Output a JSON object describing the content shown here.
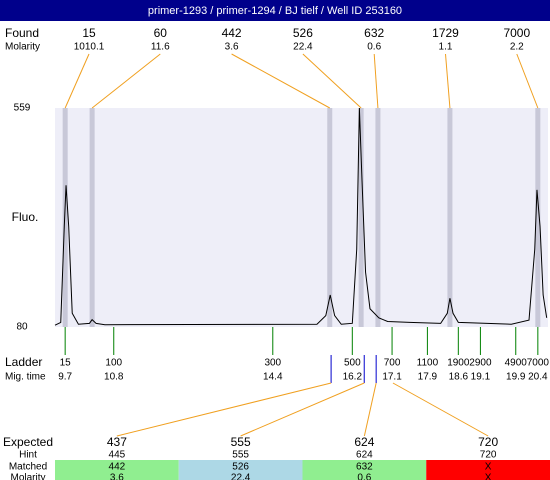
{
  "header": {
    "title": "primer-1293 / primer-1294 / BJ tielf / Well ID 253160"
  },
  "chart_data": {
    "type": "line",
    "ylabel": "Fluo.",
    "ylim": [
      80,
      559
    ],
    "yticks": [
      80,
      559
    ],
    "xlim": [
      9.47,
      20.63
    ],
    "x": [
      9.47,
      9.6,
      9.68,
      9.72,
      9.78,
      9.86,
      10.0,
      10.25,
      10.31,
      10.4,
      10.6,
      15.4,
      15.6,
      15.7,
      15.8,
      15.95,
      16.2,
      16.3,
      16.36,
      16.42,
      16.5,
      16.6,
      16.8,
      17.0,
      17.5,
      18.2,
      18.35,
      18.41,
      18.48,
      18.6,
      19.8,
      20.2,
      20.33,
      20.38,
      20.45,
      20.52,
      20.6
    ],
    "values": [
      84,
      90,
      300,
      390,
      300,
      110,
      86,
      88,
      96,
      88,
      85,
      86,
      105,
      150,
      105,
      86,
      88,
      250,
      559,
      400,
      200,
      120,
      100,
      92,
      90,
      88,
      110,
      143,
      110,
      90,
      86,
      95,
      250,
      380,
      300,
      150,
      100
    ],
    "color": "#000000",
    "found": {
      "label": "Found",
      "molarity_label": "Molarity",
      "sizes": [
        15,
        60,
        442,
        526,
        632,
        1729,
        7000
      ],
      "molarity": [
        1010.1,
        11.6,
        3.6,
        22.4,
        0.6,
        1.1,
        2.2
      ],
      "times": [
        9.7,
        10.31,
        15.69,
        16.4,
        16.78,
        18.41,
        20.4
      ]
    },
    "ladder": {
      "label": "Ladder",
      "time_label": "Mig. time",
      "sizes": [
        15,
        100,
        300,
        500,
        700,
        1100,
        1900,
        2900,
        4900,
        7000
      ],
      "times": [
        9.7,
        10.8,
        14.4,
        16.2,
        17.1,
        17.9,
        18.6,
        19.1,
        19.9,
        20.4
      ]
    }
  },
  "expected_table": {
    "row_labels": [
      "Expected",
      "Hint",
      "Matched",
      "Molarity"
    ],
    "expected": [
      437,
      555,
      624,
      720
    ],
    "hint": [
      445,
      555,
      624,
      720
    ],
    "matched": [
      442,
      526,
      632,
      "X"
    ],
    "molarity": [
      3.6,
      22.4,
      0.6,
      "X"
    ],
    "matched_colors": [
      "#90ee90",
      "#add8e6",
      "#90ee90",
      "#ff0000"
    ],
    "times": [
      15.72,
      16.47,
      16.74,
      17.12
    ]
  }
}
